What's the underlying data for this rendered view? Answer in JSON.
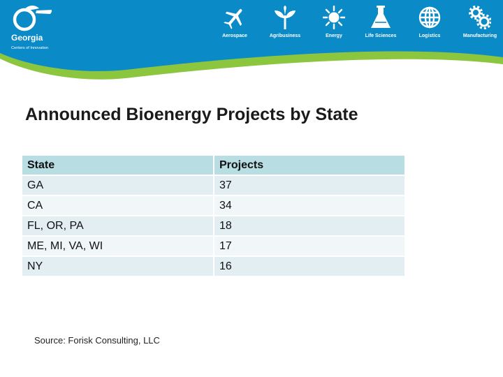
{
  "header": {
    "logo": {
      "name": "Georgia",
      "tagline": "Centers of Innovation"
    },
    "nav": [
      {
        "label": "Aerospace",
        "icon": "airplane-icon"
      },
      {
        "label": "Agribusiness",
        "icon": "plant-sprout-icon"
      },
      {
        "label": "Energy",
        "icon": "sun-icon"
      },
      {
        "label": "Life Sciences",
        "icon": "flask-icon"
      },
      {
        "label": "Logistics",
        "icon": "globe-icon"
      },
      {
        "label": "Manufacturing",
        "icon": "gears-icon"
      }
    ],
    "colors": {
      "brand_blue": "#0b8ac8",
      "accent_green": "#8cc63f"
    }
  },
  "slide": {
    "title": "Announced Bioenergy Projects by State",
    "table": {
      "columns": [
        "State",
        "Projects"
      ],
      "rows": [
        [
          "GA",
          "37"
        ],
        [
          "CA",
          "34"
        ],
        [
          "FL, OR, PA",
          "18"
        ],
        [
          "ME, MI, VA, WI",
          "17"
        ],
        [
          "NY",
          "16"
        ]
      ]
    },
    "source": "Source:  Forisk Consulting, LLC"
  }
}
